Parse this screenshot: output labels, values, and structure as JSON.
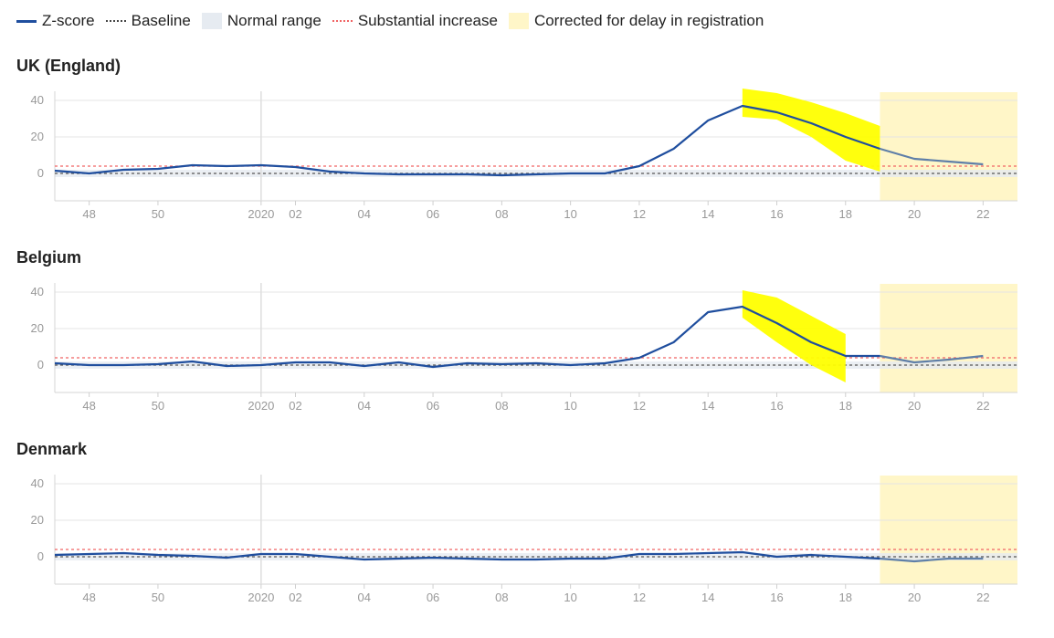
{
  "legend": [
    {
      "label": "Z-score",
      "swatch": "line"
    },
    {
      "label": "Baseline",
      "swatch": "dash"
    },
    {
      "label": "Normal range",
      "swatch": "box"
    },
    {
      "label": "Substantial increase",
      "swatch": "red"
    },
    {
      "label": "Corrected for delay in registration",
      "swatch": "yel"
    }
  ],
  "colors": {
    "zscore": "#1f4e9e",
    "zscore_faded": "#5f7fa8",
    "baseline": "#555555",
    "normal_range": "#e6ebf1",
    "substantial": "#f06464",
    "corrected": "#fff6c8",
    "ci_band": "#ffff00"
  },
  "chart_data": [
    {
      "type": "line",
      "title": "UK (England)",
      "x_ticks": [
        "48",
        "50",
        "2020",
        "02",
        "04",
        "06",
        "08",
        "10",
        "12",
        "14",
        "16",
        "18",
        "20",
        "22"
      ],
      "y_ticks": [
        "40",
        "20",
        "0"
      ],
      "ylim": [
        -15,
        45
      ],
      "baseline": 0,
      "substantial_increase": 4,
      "normal_range": [
        -2,
        2
      ],
      "corrected_from_week": 19,
      "z_scores": [
        {
          "week": "2019-W47",
          "z": 1.5
        },
        {
          "week": "2019-W48",
          "z": 0
        },
        {
          "week": "2019-W49",
          "z": 2
        },
        {
          "week": "2019-W50",
          "z": 2.5
        },
        {
          "week": "2019-W51",
          "z": 4.5
        },
        {
          "week": "2019-W52",
          "z": 4
        },
        {
          "week": "2020-W01",
          "z": 4.5
        },
        {
          "week": "2020-W02",
          "z": 3.5
        },
        {
          "week": "2020-W03",
          "z": 1
        },
        {
          "week": "2020-W04",
          "z": 0
        },
        {
          "week": "2020-W05",
          "z": -0.5
        },
        {
          "week": "2020-W06",
          "z": -0.5
        },
        {
          "week": "2020-W07",
          "z": -0.5
        },
        {
          "week": "2020-W08",
          "z": -1
        },
        {
          "week": "2020-W09",
          "z": -0.5
        },
        {
          "week": "2020-W10",
          "z": 0
        },
        {
          "week": "2020-W11",
          "z": 0
        },
        {
          "week": "2020-W12",
          "z": 4
        },
        {
          "week": "2020-W13",
          "z": 13.5
        },
        {
          "week": "2020-W14",
          "z": 29
        },
        {
          "week": "2020-W15",
          "z": 37
        },
        {
          "week": "2020-W16",
          "z": 33.5
        },
        {
          "week": "2020-W17",
          "z": 27.5
        },
        {
          "week": "2020-W18",
          "z": 20
        },
        {
          "week": "2020-W19",
          "z": 13.5
        },
        {
          "week": "2020-W20",
          "z": 8
        },
        {
          "week": "2020-W21",
          "z": 6.5
        },
        {
          "week": "2020-W22",
          "z": 5
        }
      ],
      "ci_band": [
        {
          "week": "2020-W15",
          "low": 31,
          "high": 46.5
        },
        {
          "week": "2020-W16",
          "low": 29.5,
          "high": 44
        },
        {
          "week": "2020-W17",
          "low": 20,
          "high": 39
        },
        {
          "week": "2020-W18",
          "low": 7,
          "high": 33
        },
        {
          "week": "2020-W19",
          "low": 1,
          "high": 26
        }
      ]
    },
    {
      "type": "line",
      "title": "Belgium",
      "x_ticks": [
        "48",
        "50",
        "2020",
        "02",
        "04",
        "06",
        "08",
        "10",
        "12",
        "14",
        "16",
        "18",
        "20",
        "22"
      ],
      "y_ticks": [
        "40",
        "20",
        "0"
      ],
      "ylim": [
        -15,
        45
      ],
      "baseline": 0,
      "substantial_increase": 4,
      "normal_range": [
        -2,
        2
      ],
      "corrected_from_week": 19,
      "z_scores": [
        {
          "week": "2019-W47",
          "z": 1
        },
        {
          "week": "2019-W48",
          "z": 0
        },
        {
          "week": "2019-W49",
          "z": 0
        },
        {
          "week": "2019-W50",
          "z": 0.5
        },
        {
          "week": "2019-W51",
          "z": 2
        },
        {
          "week": "2019-W52",
          "z": -0.5
        },
        {
          "week": "2020-W01",
          "z": 0
        },
        {
          "week": "2020-W02",
          "z": 1.5
        },
        {
          "week": "2020-W03",
          "z": 1.5
        },
        {
          "week": "2020-W04",
          "z": -0.5
        },
        {
          "week": "2020-W05",
          "z": 1.5
        },
        {
          "week": "2020-W06",
          "z": -1
        },
        {
          "week": "2020-W07",
          "z": 1
        },
        {
          "week": "2020-W08",
          "z": 0.5
        },
        {
          "week": "2020-W09",
          "z": 1
        },
        {
          "week": "2020-W10",
          "z": 0
        },
        {
          "week": "2020-W11",
          "z": 1
        },
        {
          "week": "2020-W12",
          "z": 4
        },
        {
          "week": "2020-W13",
          "z": 12.5
        },
        {
          "week": "2020-W14",
          "z": 29
        },
        {
          "week": "2020-W15",
          "z": 32
        },
        {
          "week": "2020-W16",
          "z": 23
        },
        {
          "week": "2020-W17",
          "z": 12.5
        },
        {
          "week": "2020-W18",
          "z": 5
        },
        {
          "week": "2020-W19",
          "z": 5
        },
        {
          "week": "2020-W20",
          "z": 1.5
        },
        {
          "week": "2020-W21",
          "z": 3
        },
        {
          "week": "2020-W22",
          "z": 5
        }
      ],
      "ci_band": [
        {
          "week": "2020-W15",
          "low": 26,
          "high": 41
        },
        {
          "week": "2020-W16",
          "low": 12.5,
          "high": 37
        },
        {
          "week": "2020-W17",
          "low": 0,
          "high": 27
        },
        {
          "week": "2020-W18",
          "low": -9.5,
          "high": 17
        }
      ]
    },
    {
      "type": "line",
      "title": "Denmark",
      "x_ticks": [
        "48",
        "50",
        "2020",
        "02",
        "04",
        "06",
        "08",
        "10",
        "12",
        "14",
        "16",
        "18",
        "20",
        "22"
      ],
      "y_ticks": [
        "40",
        "20",
        "0"
      ],
      "ylim": [
        -15,
        45
      ],
      "baseline": 0,
      "substantial_increase": 4,
      "normal_range": [
        -2,
        2
      ],
      "corrected_from_week": 19,
      "z_scores": [
        {
          "week": "2019-W47",
          "z": 1
        },
        {
          "week": "2019-W48",
          "z": 1.5
        },
        {
          "week": "2019-W49",
          "z": 2
        },
        {
          "week": "2019-W50",
          "z": 1
        },
        {
          "week": "2019-W51",
          "z": 0.5
        },
        {
          "week": "2019-W52",
          "z": -0.5
        },
        {
          "week": "2020-W01",
          "z": 1.5
        },
        {
          "week": "2020-W02",
          "z": 1.5
        },
        {
          "week": "2020-W03",
          "z": 0
        },
        {
          "week": "2020-W04",
          "z": -1.5
        },
        {
          "week": "2020-W05",
          "z": -1
        },
        {
          "week": "2020-W06",
          "z": -0.5
        },
        {
          "week": "2020-W07",
          "z": -1
        },
        {
          "week": "2020-W08",
          "z": -1.5
        },
        {
          "week": "2020-W09",
          "z": -1.5
        },
        {
          "week": "2020-W10",
          "z": -1
        },
        {
          "week": "2020-W11",
          "z": -1
        },
        {
          "week": "2020-W12",
          "z": 1.5
        },
        {
          "week": "2020-W13",
          "z": 1.5
        },
        {
          "week": "2020-W14",
          "z": 2
        },
        {
          "week": "2020-W15",
          "z": 2.5
        },
        {
          "week": "2020-W16",
          "z": 0
        },
        {
          "week": "2020-W17",
          "z": 1
        },
        {
          "week": "2020-W18",
          "z": 0
        },
        {
          "week": "2020-W19",
          "z": -1
        },
        {
          "week": "2020-W20",
          "z": -2.5
        },
        {
          "week": "2020-W21",
          "z": -1
        },
        {
          "week": "2020-W22",
          "z": -1
        }
      ],
      "ci_band": []
    }
  ]
}
